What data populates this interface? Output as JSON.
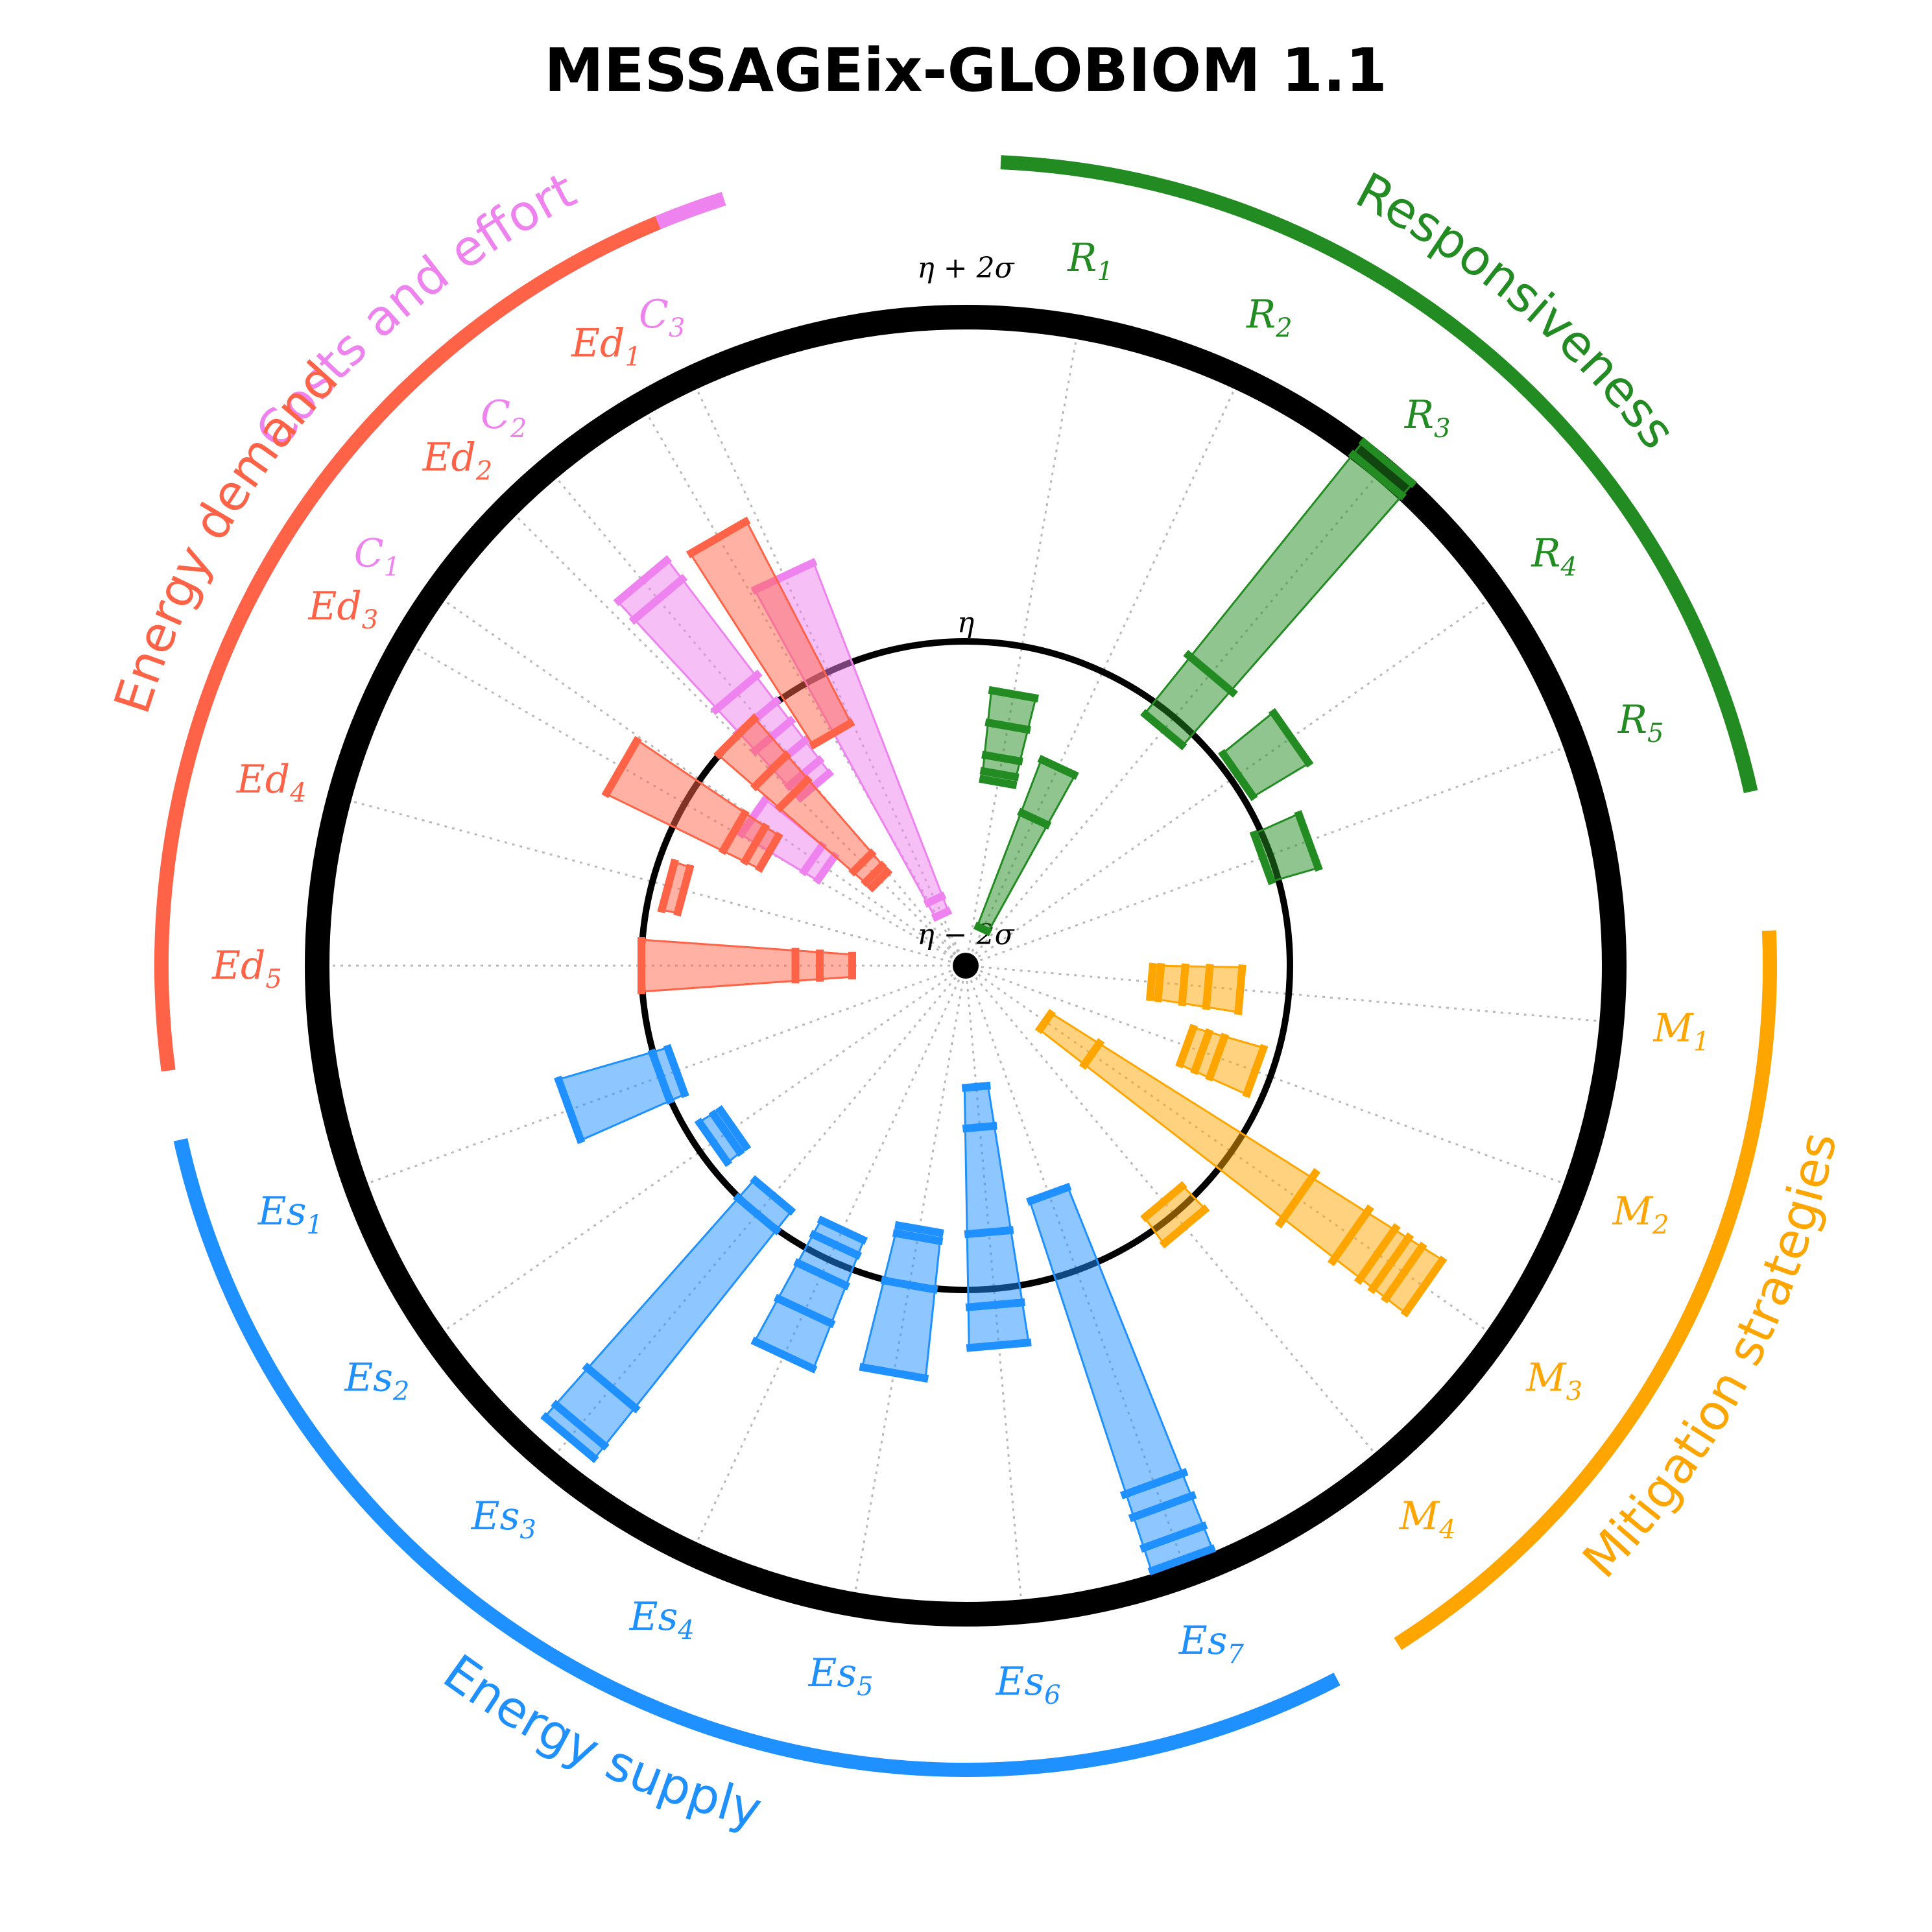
{
  "chart_data": {
    "type": "radial-indicator",
    "title": "MESSAGEix-GLOBIOM 1.1",
    "scale": {
      "labels": [
        "η + 2σ",
        "η",
        "η − 2σ"
      ],
      "values": [
        2,
        0,
        -2
      ],
      "range": [
        -2,
        2
      ]
    },
    "groups": [
      {
        "key": "C",
        "name": "Costs and effort",
        "color": "#ee82ee",
        "indicators": [
          {
            "base": "C",
            "sub": "1"
          },
          {
            "base": "C",
            "sub": "2"
          },
          {
            "base": "C",
            "sub": "3"
          }
        ]
      },
      {
        "key": "R",
        "name": "Responsiveness",
        "color": "#228b22",
        "indicators": [
          {
            "base": "R",
            "sub": "1"
          },
          {
            "base": "R",
            "sub": "2"
          },
          {
            "base": "R",
            "sub": "3"
          },
          {
            "base": "R",
            "sub": "4"
          },
          {
            "base": "R",
            "sub": "5"
          }
        ]
      },
      {
        "key": "M",
        "name": "Mitigation strategies",
        "color": "#ffa500",
        "indicators": [
          {
            "base": "M",
            "sub": "1"
          },
          {
            "base": "M",
            "sub": "2"
          },
          {
            "base": "M",
            "sub": "3"
          },
          {
            "base": "M",
            "sub": "4"
          }
        ]
      },
      {
        "key": "Es",
        "name": "Energy supply",
        "color": "#1e90ff",
        "indicators": [
          {
            "base": "Es",
            "sub": "1"
          },
          {
            "base": "Es",
            "sub": "2"
          },
          {
            "base": "Es",
            "sub": "3"
          },
          {
            "base": "Es",
            "sub": "4"
          },
          {
            "base": "Es",
            "sub": "5"
          },
          {
            "base": "Es",
            "sub": "6"
          },
          {
            "base": "Es",
            "sub": "7"
          }
        ]
      },
      {
        "key": "Ed",
        "name": "Energy demand",
        "color": "#ff6347",
        "indicators": [
          {
            "base": "Ed",
            "sub": "1"
          },
          {
            "base": "Ed",
            "sub": "2"
          },
          {
            "base": "Ed",
            "sub": "3"
          },
          {
            "base": "Ed",
            "sub": "4"
          },
          {
            "base": "Ed",
            "sub": "5"
          }
        ]
      }
    ],
    "values": {
      "C1": [
        -0.4,
        -0.85,
        -0.95
      ],
      "C2": [
        1.1,
        0.95,
        0.2,
        0.0,
        -0.15,
        -0.3,
        -0.45,
        -0.55
      ],
      "C3": [
        0.65,
        -1.55,
        -1.65
      ],
      "R1": [
        -0.3,
        -0.5,
        -0.7,
        -0.8,
        -0.85
      ],
      "R2": [
        -0.65,
        -1.0,
        -1.75
      ],
      "R3": [
        2.05,
        1.95,
        0.35,
        -0.1
      ],
      "R4": [
        0.45,
        0.05
      ],
      "R5": [
        0.25,
        -0.05
      ],
      "M1": [
        -0.85,
        -0.8,
        -0.65,
        -0.5,
        -0.3
      ],
      "M2": [
        -0.55,
        -0.45,
        -0.35,
        -0.1
      ],
      "M3": [
        1.45,
        1.3,
        1.2,
        1.1,
        0.9,
        0.5,
        -1.05,
        -1.4
      ],
      "M4": [
        0.1,
        -0.1
      ],
      "Es1": [
        0.6,
        0.0,
        -0.1
      ],
      "Es2": [
        -0.1,
        -0.2,
        -0.25
      ],
      "Es3": [
        1.8,
        1.7,
        1.4,
        0.0,
        -0.15
      ],
      "Es4": [
        0.65,
        0.35,
        0.1,
        -0.1,
        -0.2
      ],
      "Es5": [
        0.55,
        0.0,
        -0.3,
        -0.35
      ],
      "Es6": [
        0.35,
        0.1,
        -0.35,
        -1.0,
        -1.25
      ],
      "Es7": [
        1.9,
        1.75,
        1.55,
        1.4,
        -0.5
      ],
      "Ed1": [
        1.05,
        -0.35
      ],
      "Ed2": [
        0.0,
        -0.3,
        -0.5,
        -1.1,
        -1.2,
        -1.25
      ],
      "Ed3": [
        0.45,
        -0.35,
        -0.5,
        -0.6
      ],
      "Ed4": [
        -0.1,
        -0.2
      ],
      "Ed5": [
        0.0,
        -0.95,
        -1.1,
        -1.3
      ]
    }
  }
}
